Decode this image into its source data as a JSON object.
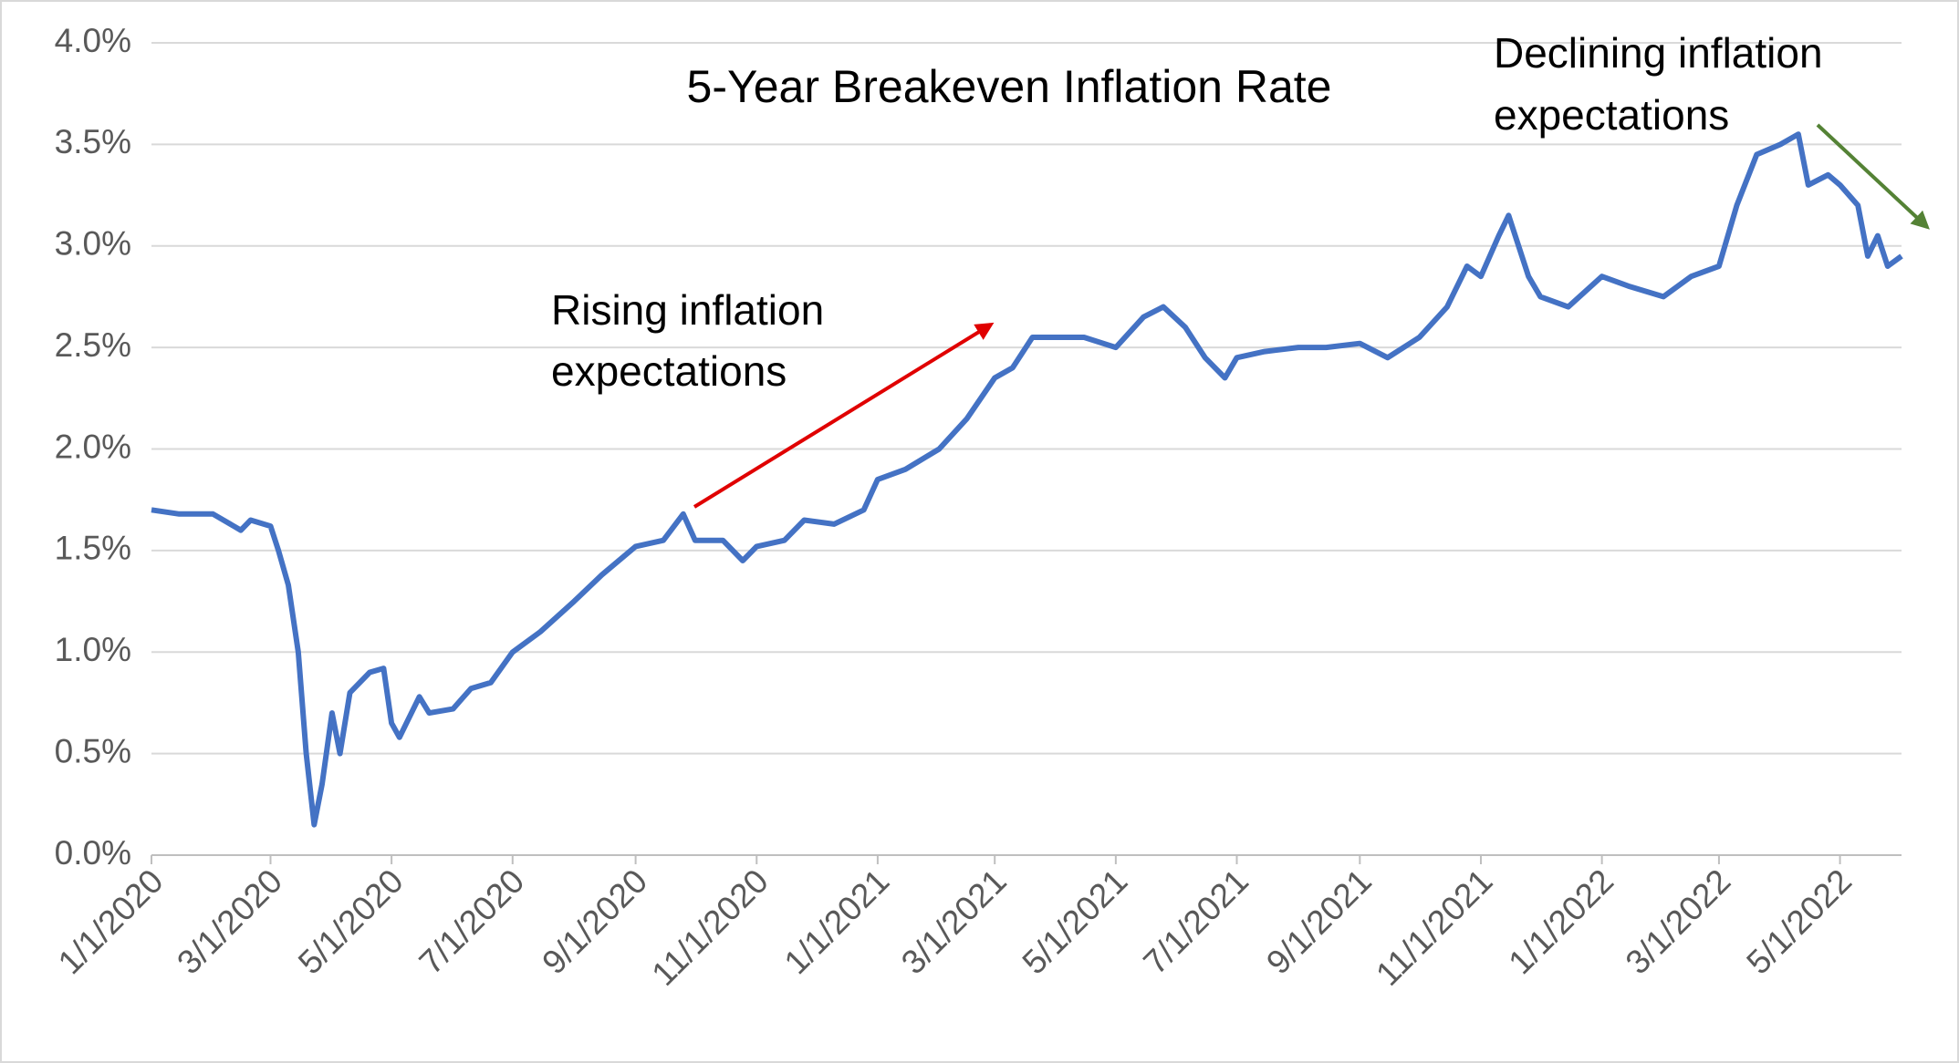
{
  "chart_data": {
    "type": "line",
    "title": "5-Year Breakeven Inflation Rate",
    "annotations": [
      [
        "Rising inflation",
        "expectations"
      ],
      [
        "Declining inflation",
        "expectations"
      ]
    ],
    "x": [
      "1/1/2020",
      "1/15/2020",
      "2/1/2020",
      "2/15/2020",
      "2/20/2020",
      "3/1/2020",
      "3/5/2020",
      "3/10/2020",
      "3/15/2020",
      "3/19/2020",
      "3/23/2020",
      "3/27/2020",
      "4/1/2020",
      "4/5/2020",
      "4/10/2020",
      "4/20/2020",
      "4/27/2020",
      "5/1/2020",
      "5/5/2020",
      "5/15/2020",
      "5/20/2020",
      "6/1/2020",
      "6/10/2020",
      "6/20/2020",
      "7/1/2020",
      "7/15/2020",
      "8/1/2020",
      "8/15/2020",
      "9/1/2020",
      "9/15/2020",
      "9/25/2020",
      "10/1/2020",
      "10/15/2020",
      "10/25/2020",
      "11/1/2020",
      "11/15/2020",
      "11/25/2020",
      "12/10/2020",
      "12/25/2020",
      "1/1/2021",
      "1/15/2021",
      "2/1/2021",
      "2/15/2021",
      "3/1/2021",
      "3/10/2021",
      "3/20/2021",
      "4/1/2021",
      "4/15/2021",
      "5/1/2021",
      "5/15/2021",
      "5/25/2021",
      "6/5/2021",
      "6/15/2021",
      "6/25/2021",
      "7/1/2021",
      "7/15/2021",
      "8/1/2021",
      "8/15/2021",
      "9/1/2021",
      "9/15/2021",
      "10/1/2021",
      "10/15/2021",
      "10/25/2021",
      "11/1/2021",
      "11/10/2021",
      "11/15/2021",
      "11/25/2021",
      "12/1/2021",
      "12/15/2021",
      "1/1/2022",
      "1/15/2022",
      "2/1/2022",
      "2/15/2022",
      "3/1/2022",
      "3/10/2022",
      "3/20/2022",
      "4/1/2022",
      "4/10/2022",
      "4/15/2022",
      "4/25/2022",
      "5/1/2022",
      "5/10/2022",
      "5/15/2022",
      "5/20/2022",
      "5/25/2022",
      "6/1/2022"
    ],
    "series": [
      {
        "name": "5-Year Breakeven Inflation Rate",
        "color": "#4472c4",
        "values": [
          1.7,
          1.68,
          1.68,
          1.6,
          1.65,
          1.62,
          1.5,
          1.33,
          1.0,
          0.5,
          0.15,
          0.35,
          0.7,
          0.5,
          0.8,
          0.9,
          0.92,
          0.65,
          0.58,
          0.78,
          0.7,
          0.72,
          0.82,
          0.85,
          1.0,
          1.1,
          1.25,
          1.38,
          1.52,
          1.55,
          1.68,
          1.55,
          1.55,
          1.45,
          1.52,
          1.55,
          1.65,
          1.63,
          1.7,
          1.85,
          1.9,
          2.0,
          2.15,
          2.35,
          2.4,
          2.55,
          2.55,
          2.55,
          2.5,
          2.65,
          2.7,
          2.6,
          2.45,
          2.35,
          2.45,
          2.48,
          2.5,
          2.5,
          2.52,
          2.45,
          2.55,
          2.7,
          2.9,
          2.85,
          3.05,
          3.15,
          2.85,
          2.75,
          2.7,
          2.85,
          2.8,
          2.75,
          2.85,
          2.9,
          3.2,
          3.45,
          3.5,
          3.55,
          3.3,
          3.35,
          3.3,
          3.2,
          2.95,
          3.05,
          2.9,
          2.95
        ]
      }
    ],
    "xlim": [
      "1/1/2020",
      "6/1/2022"
    ],
    "xticks": [
      "1/1/2020",
      "3/1/2020",
      "5/1/2020",
      "7/1/2020",
      "9/1/2020",
      "11/1/2020",
      "1/1/2021",
      "3/1/2021",
      "5/1/2021",
      "7/1/2021",
      "9/1/2021",
      "11/1/2021",
      "1/1/2022",
      "3/1/2022",
      "5/1/2022"
    ],
    "ylim": [
      0,
      4
    ],
    "yticks": [
      {
        "value": 0,
        "label": "0.0%"
      },
      {
        "value": 0.5,
        "label": "0.5%"
      },
      {
        "value": 1,
        "label": "1.0%"
      },
      {
        "value": 1.5,
        "label": "1.5%"
      },
      {
        "value": 2,
        "label": "2.0%"
      },
      {
        "value": 2.5,
        "label": "2.5%"
      },
      {
        "value": 3,
        "label": "3.0%"
      },
      {
        "value": 3.5,
        "label": "3.5%"
      },
      {
        "value": 4,
        "label": "4.0%"
      }
    ],
    "grid": true
  }
}
